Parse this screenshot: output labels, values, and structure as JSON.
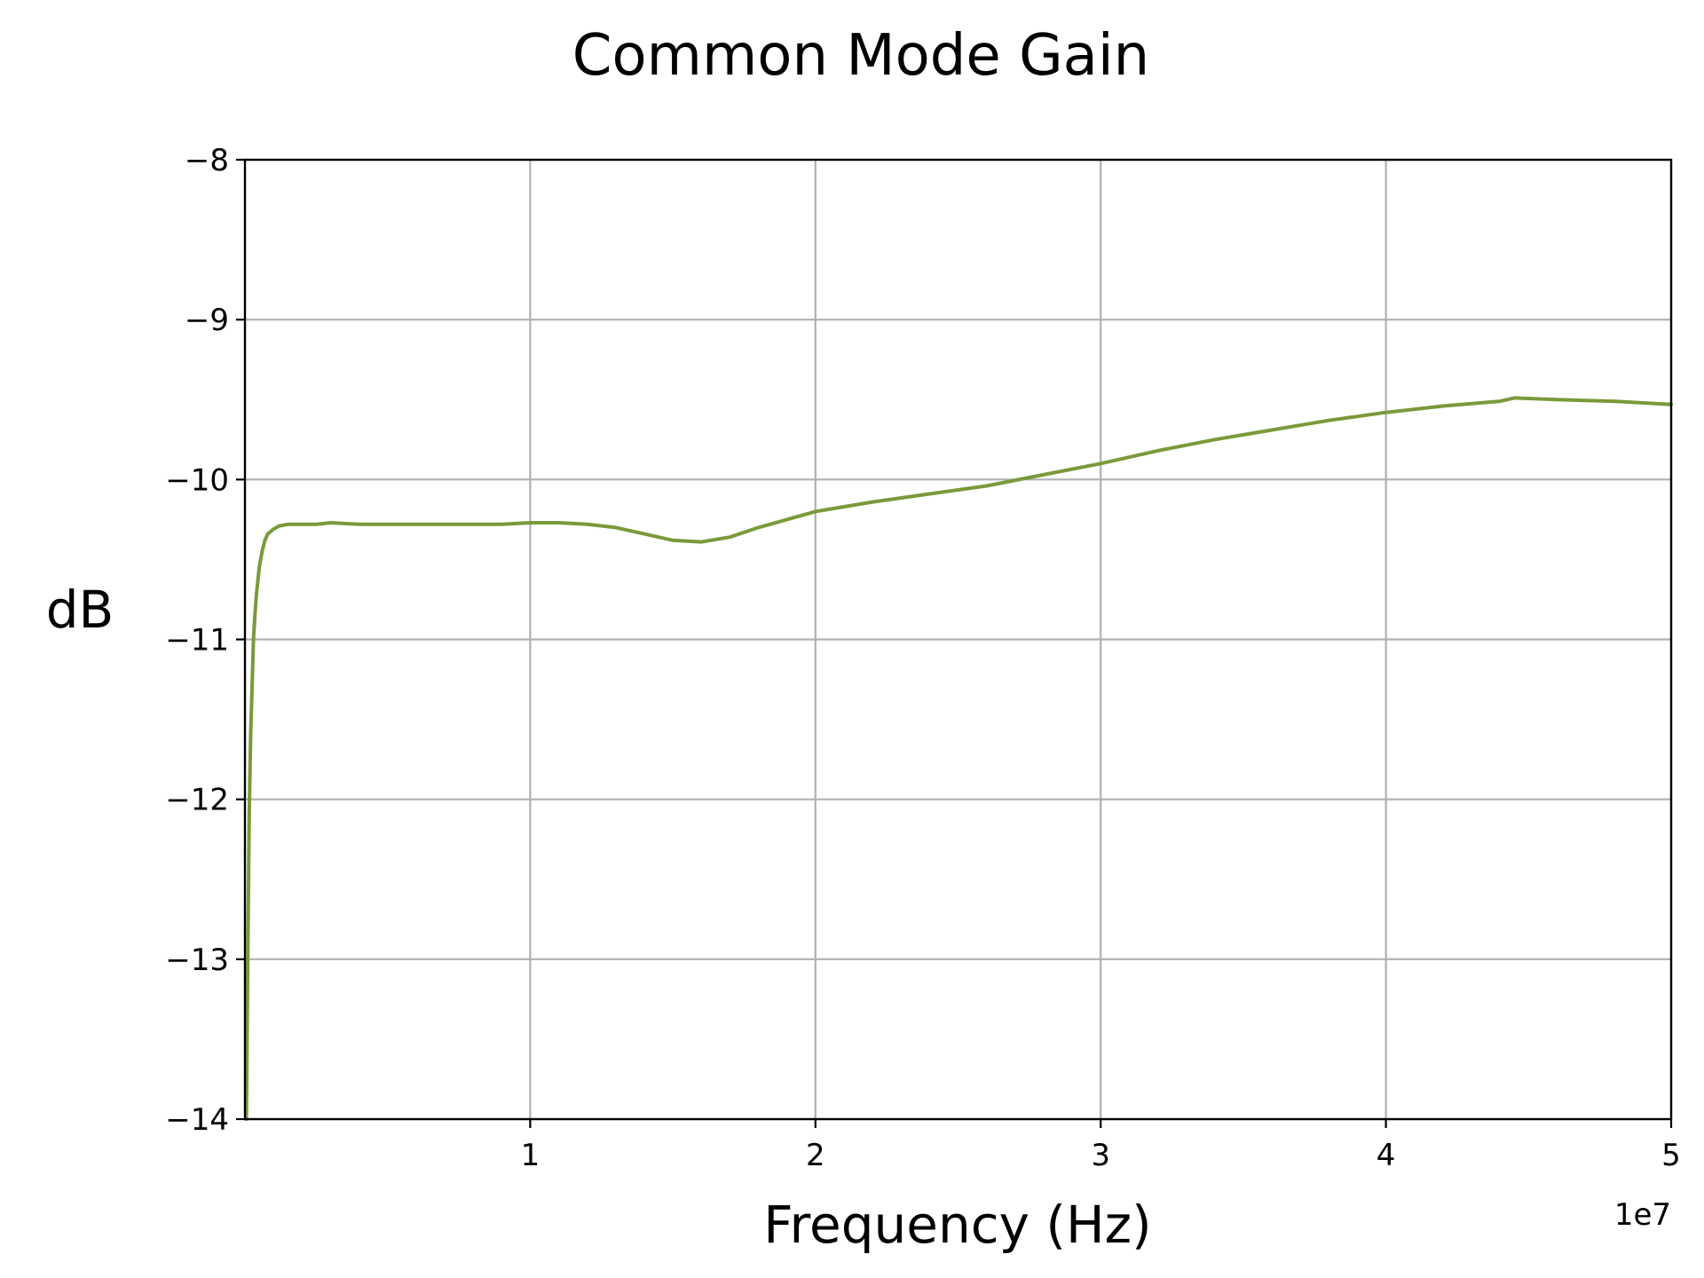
{
  "chart_data": {
    "type": "line",
    "title": "Common Mode Gain",
    "xlabel": "Frequency (Hz)",
    "ylabel": "dB",
    "x_offset_text": "1e7",
    "xlim": [
      0,
      50000000
    ],
    "ylim": [
      -14,
      -8
    ],
    "x_ticks": [
      10000000,
      20000000,
      30000000,
      40000000,
      50000000
    ],
    "x_tick_labels": [
      "1",
      "2",
      "3",
      "4",
      "5"
    ],
    "y_ticks": [
      -14,
      -13,
      -12,
      -11,
      -10,
      -9,
      -8
    ],
    "y_tick_labels": [
      "−14",
      "−13",
      "−12",
      "−11",
      "−10",
      "−9",
      "−8"
    ],
    "grid": true,
    "series": [
      {
        "color": "#7a9a3a",
        "x": [
          50000,
          100000,
          150000,
          200000,
          250000,
          300000,
          350000,
          400000,
          500000,
          600000,
          700000,
          800000,
          1000000,
          1200000,
          1500000,
          2000000,
          2500000,
          3000000,
          4000000,
          5000000,
          6000000,
          7000000,
          8000000,
          9000000,
          10000000,
          11000000,
          12000000,
          13000000,
          14000000,
          15000000,
          16000000,
          17000000,
          18000000,
          19000000,
          20000000,
          22000000,
          24000000,
          26000000,
          28000000,
          30000000,
          32000000,
          34000000,
          36000000,
          38000000,
          40000000,
          42000000,
          44000000,
          44500000,
          46000000,
          48000000,
          50000000
        ],
        "y": [
          -14.0,
          -13.0,
          -12.1,
          -11.6,
          -11.3,
          -11.0,
          -10.85,
          -10.72,
          -10.55,
          -10.45,
          -10.38,
          -10.34,
          -10.31,
          -10.29,
          -10.28,
          -10.28,
          -10.28,
          -10.27,
          -10.28,
          -10.28,
          -10.28,
          -10.28,
          -10.28,
          -10.28,
          -10.27,
          -10.27,
          -10.28,
          -10.3,
          -10.34,
          -10.38,
          -10.39,
          -10.36,
          -10.3,
          -10.25,
          -10.2,
          -10.14,
          -10.09,
          -10.04,
          -9.97,
          -9.9,
          -9.82,
          -9.75,
          -9.69,
          -9.63,
          -9.58,
          -9.54,
          -9.51,
          -9.49,
          -9.5,
          -9.51,
          -9.53
        ]
      }
    ]
  }
}
